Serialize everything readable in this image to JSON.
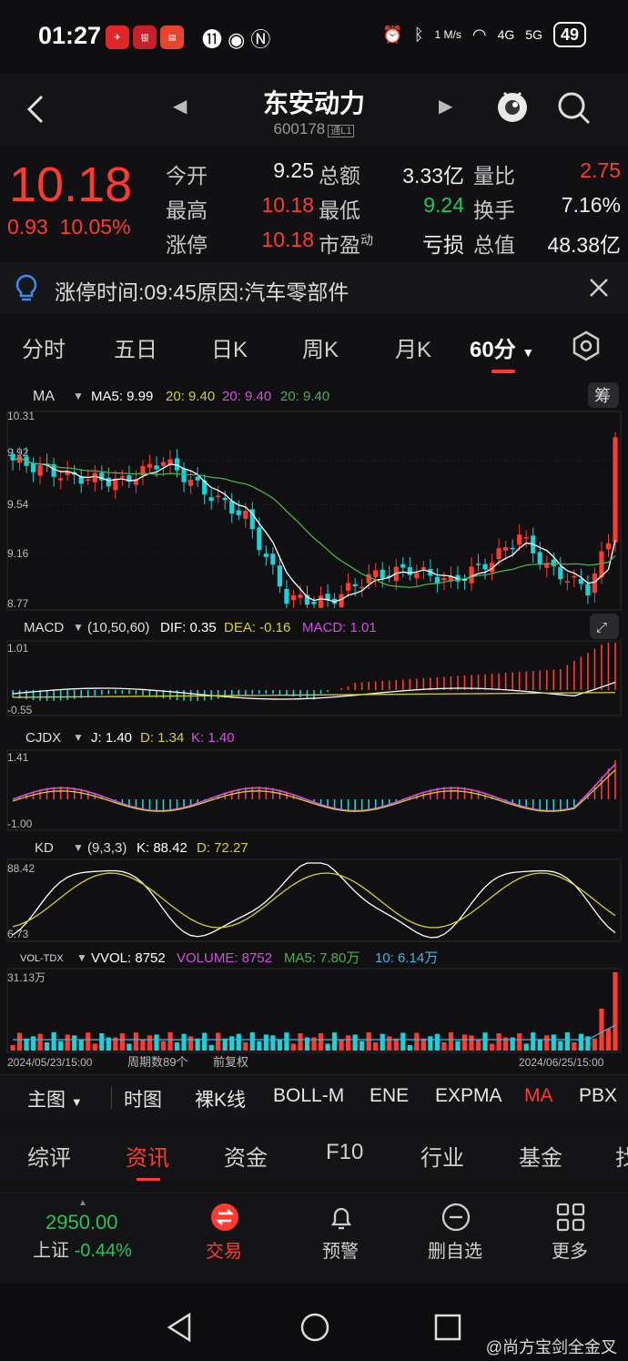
{
  "status": {
    "time": "01:27",
    "net_speed": "1 M/s",
    "signal1": "4G",
    "signal2": "5G",
    "battery": "49"
  },
  "header": {
    "name": "东安动力",
    "code": "600178",
    "tag": "通L1"
  },
  "quote": {
    "price": "10.18",
    "change": "0.93",
    "change_pct": "10.05%",
    "rows": [
      {
        "l1": "今开",
        "v1": "9.25",
        "l2": "总额",
        "v2": "3.33亿",
        "l3": "量比",
        "v3": "2.75"
      },
      {
        "l1": "最高",
        "v1": "10.18",
        "l2": "最低",
        "v2": "9.24",
        "l3": "换手",
        "v3": "7.16%"
      },
      {
        "l1": "涨停",
        "v1": "10.18",
        "l2": "市盈",
        "l2sup": "动",
        "v2": "亏损",
        "l3": "总值",
        "v3": "48.38亿"
      }
    ]
  },
  "notice": {
    "text": "涨停时间:09:45原因:汽车零部件"
  },
  "period_tabs": [
    "分时",
    "五日",
    "日K",
    "周K",
    "月K",
    "60分"
  ],
  "chart": {
    "ma_label": "MA",
    "ma5": "MA5: 9.99",
    "ma10": "20: 9.40",
    "ma20": "20: 9.40",
    "ma60": "20: 9.40",
    "chip_btn": "筹",
    "price_axis": [
      "10.31",
      "9.92",
      "9.54",
      "9.16",
      "8.77"
    ],
    "macd_label": "MACD",
    "macd_params": "(10,50,60)",
    "macd_dif": "DIF: 0.35",
    "macd_dea": "DEA: -0.16",
    "macd_val": "MACD: 1.01",
    "macd_axis": [
      "1.01",
      "-0.55"
    ],
    "cjdx_label": "CJDX",
    "cjdx_j": "J: 1.40",
    "cjdx_d": "D: 1.34",
    "cjdx_k": "K: 1.40",
    "cjdx_axis": [
      "1.41",
      "-1.00"
    ],
    "kd_label": "KD",
    "kd_params": "(9,3,3)",
    "kd_k": "K: 88.42",
    "kd_d": "D: 72.27",
    "kd_axis": [
      "88.42",
      "6.73"
    ],
    "vol_label": "VOL-TDX",
    "vol_vvol": "VVOL: 8752",
    "vol_volume": "VOLUME: 8752",
    "vol_ma5": "MA5: 7.80万",
    "vol_ma10": "10: 6.14万",
    "vol_axis": "31.13万",
    "date_start": "2024/05/23/15:00",
    "period_count": "周期数89个",
    "adjust": "前复权",
    "date_end": "2024/06/25/15:00"
  },
  "indicator_tabs": [
    "主图",
    "时图",
    "裸K线",
    "BOLL-M",
    "ENE",
    "EXPMA",
    "MA",
    "PBX"
  ],
  "section_tabs": [
    "综评",
    "资讯",
    "资金",
    "F10",
    "行业",
    "基金",
    "找"
  ],
  "bottom_nav": {
    "index_value": "2950.00",
    "index_name": "上证",
    "index_change": "-0.44%",
    "trade": "交易",
    "alert": "预警",
    "remove": "删自选",
    "more": "更多"
  },
  "watermark": "@尚方宝剑全金叉",
  "colors": {
    "up": "#ff3b30",
    "down": "#19d3da",
    "ma5": "#ffffff",
    "ma20": "#d7d02a",
    "ma60": "#4caf50",
    "macd_purple": "#d44fe0"
  }
}
